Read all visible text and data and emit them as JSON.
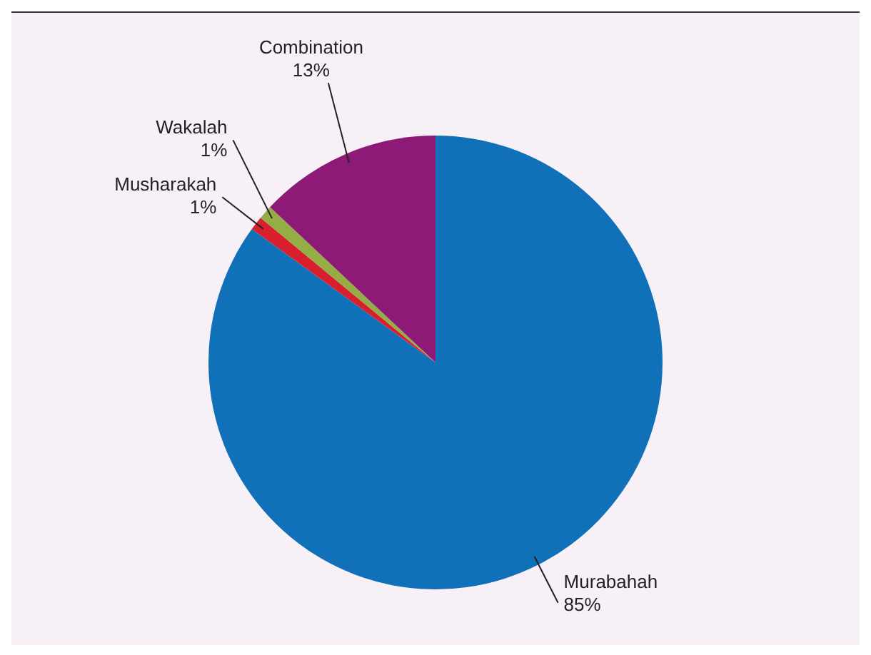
{
  "chart_data": {
    "type": "pie",
    "categories": [
      "Murabahah",
      "Musharakah",
      "Wakalah",
      "Combination"
    ],
    "values": [
      85,
      1,
      1,
      13
    ],
    "colors": [
      "#1071b9",
      "#d71f2d",
      "#95ad45",
      "#8d1a77"
    ],
    "value_labels": [
      "85%",
      "1%",
      "1%",
      "13%"
    ],
    "legend": false
  }
}
